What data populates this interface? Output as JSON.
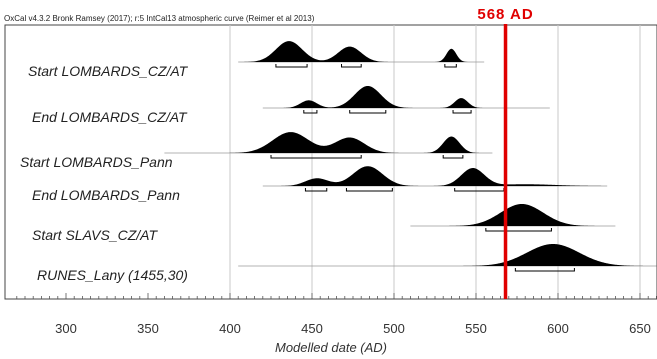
{
  "header": {
    "text": "OxCal v4.3.2 Bronk Ramsey (2017); r:5 IntCal13 atmospheric curve (Reimer et al 2013)"
  },
  "chart_data": {
    "type": "area",
    "xlabel": "Modelled date (AD)",
    "ylabel": "",
    "xlim": [
      270,
      660
    ],
    "x_ticks": [
      300,
      350,
      400,
      450,
      500,
      550,
      600,
      650
    ],
    "grid": true,
    "marker": {
      "value": 568,
      "label": "568 AD",
      "color": "#e00000"
    },
    "series": [
      {
        "name": "Start LOMBARDS_CZ/AT",
        "peaks": [
          {
            "center": 436,
            "sigma": 8,
            "height": 0.95
          },
          {
            "center": 473,
            "sigma": 7,
            "height": 0.7
          },
          {
            "center": 535,
            "sigma": 3,
            "height": 0.6
          }
        ],
        "tail_range": [
          405,
          555
        ],
        "ranges": [
          [
            428,
            447
          ],
          [
            468,
            480
          ],
          [
            531,
            538
          ]
        ]
      },
      {
        "name": "End LOMBARDS_CZ/AT",
        "peaks": [
          {
            "center": 448,
            "sigma": 5,
            "height": 0.35
          },
          {
            "center": 484,
            "sigma": 8,
            "height": 1.0
          },
          {
            "center": 541,
            "sigma": 4,
            "height": 0.45
          }
        ],
        "tail_range": [
          420,
          595
        ],
        "ranges": [
          [
            445,
            453
          ],
          [
            473,
            495
          ],
          [
            536,
            547
          ]
        ]
      },
      {
        "name": "Start LOMBARDS_Pann",
        "peaks": [
          {
            "center": 437,
            "sigma": 11,
            "height": 0.95
          },
          {
            "center": 473,
            "sigma": 9,
            "height": 0.7
          },
          {
            "center": 535,
            "sigma": 5,
            "height": 0.75
          }
        ],
        "tail_range": [
          360,
          560
        ],
        "ranges": [
          [
            425,
            480
          ],
          [
            530,
            542
          ]
        ]
      },
      {
        "name": "End LOMBARDS_Pann",
        "peaks": [
          {
            "center": 453,
            "sigma": 7,
            "height": 0.35
          },
          {
            "center": 484,
            "sigma": 9,
            "height": 0.9
          },
          {
            "center": 548,
            "sigma": 7,
            "height": 0.8
          },
          {
            "center": 580,
            "sigma": 18,
            "height": 0.08
          }
        ],
        "tail_range": [
          420,
          630
        ],
        "ranges": [
          [
            446,
            459
          ],
          [
            471,
            499
          ],
          [
            537,
            567
          ]
        ]
      },
      {
        "name": "Start SLAVS_CZ/AT",
        "peaks": [
          {
            "center": 578,
            "sigma": 13,
            "height": 1.0
          }
        ],
        "tail_range": [
          510,
          635
        ],
        "ranges": [
          [
            556,
            596
          ]
        ]
      },
      {
        "name": "RUNES_Lany (1455,30)",
        "peaks": [
          {
            "center": 597,
            "sigma": 16,
            "height": 1.0
          }
        ],
        "tail_range": [
          405,
          660
        ],
        "ranges": [
          [
            574,
            610
          ]
        ]
      }
    ]
  }
}
